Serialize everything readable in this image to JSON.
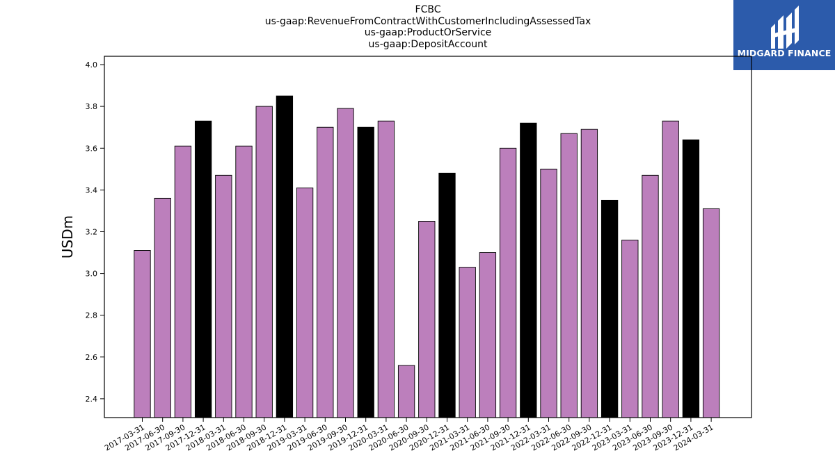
{
  "header": {
    "title_lines": [
      "FCBC",
      "us-gaap:RevenueFromContractWithCustomerIncludingAssessedTax",
      "us-gaap:ProductOrService",
      "us-gaap:DepositAccount"
    ]
  },
  "logo": {
    "text": "MIDGARD FINANCE",
    "background": "#2c5bab"
  },
  "chart_data": {
    "type": "bar",
    "title": "FCBC\nus-gaap:RevenueFromContractWithCustomerIncludingAssessedTax\nus-gaap:ProductOrService\nus-gaap:DepositAccount",
    "xlabel": "",
    "ylabel": "USDm",
    "ylim": [
      2.31,
      4.04
    ],
    "yticks": [
      2.4,
      2.6,
      2.8,
      3.0,
      3.2,
      3.4,
      3.6,
      3.8,
      4.0
    ],
    "grid": false,
    "colors": {
      "quarter": "#bc7fbc",
      "year_end": "#000000",
      "edge": "#000000"
    },
    "categories": [
      "2017-03-31",
      "2017-06-30",
      "2017-09-30",
      "2017-12-31",
      "2018-03-31",
      "2018-06-30",
      "2018-09-30",
      "2018-12-31",
      "2019-03-31",
      "2019-06-30",
      "2019-09-30",
      "2019-12-31",
      "2020-03-31",
      "2020-06-30",
      "2020-09-30",
      "2020-12-31",
      "2021-03-31",
      "2021-06-30",
      "2021-09-30",
      "2021-12-31",
      "2022-03-31",
      "2022-06-30",
      "2022-09-30",
      "2022-12-31",
      "2023-03-31",
      "2023-06-30",
      "2023-09-30",
      "2023-12-31",
      "2024-03-31"
    ],
    "values": [
      3.11,
      3.36,
      3.61,
      3.73,
      3.47,
      3.61,
      3.8,
      3.85,
      3.41,
      3.7,
      3.79,
      3.7,
      3.73,
      2.56,
      3.25,
      3.48,
      3.03,
      3.1,
      3.6,
      3.72,
      3.5,
      3.67,
      3.69,
      3.35,
      3.16,
      3.47,
      3.73,
      3.64,
      3.31
    ]
  }
}
